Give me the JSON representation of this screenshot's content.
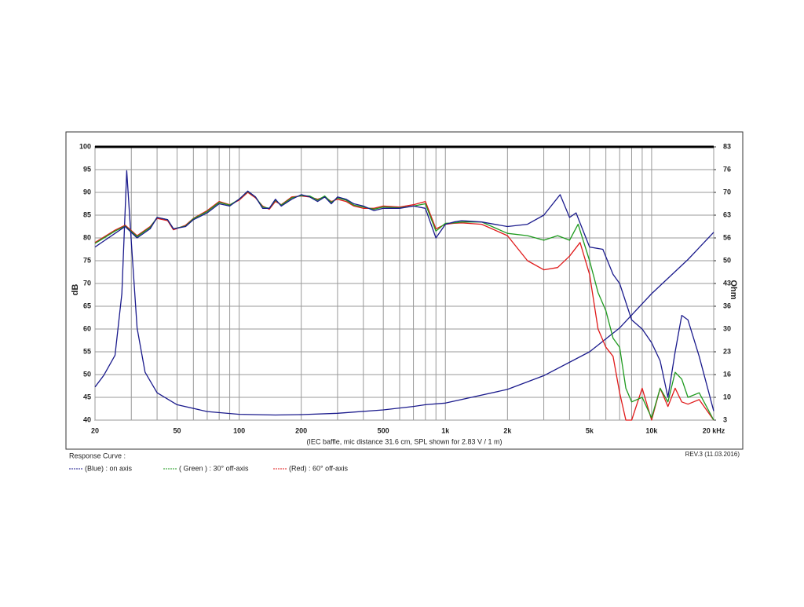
{
  "chart_data": {
    "type": "line",
    "xscale": "log",
    "xlim": [
      20,
      20000
    ],
    "xticks": [
      20,
      50,
      100,
      200,
      500,
      {
        "value": 1000,
        "label": "1k"
      },
      {
        "value": 2000,
        "label": "2k"
      },
      {
        "value": 5000,
        "label": "5k"
      },
      {
        "value": 10000,
        "label": "10k"
      },
      {
        "value": 20000,
        "label": "20 kHz"
      }
    ],
    "xgrid": [
      30,
      40,
      60,
      70,
      80,
      90,
      300,
      400,
      600,
      700,
      800,
      900,
      3000,
      4000,
      6000,
      7000,
      8000,
      9000
    ],
    "ylim": [
      40,
      100
    ],
    "yticks": [
      40,
      45,
      50,
      55,
      60,
      65,
      70,
      75,
      80,
      85,
      90,
      95,
      100
    ],
    "y2lim": [
      3,
      83
    ],
    "y2ticks": [
      3,
      {
        "value": 9.667,
        "label": "10"
      },
      {
        "value": 16.333,
        "label": "16"
      },
      23,
      {
        "value": 29.667,
        "label": "30"
      },
      {
        "value": 36.333,
        "label": "36"
      },
      43,
      {
        "value": 49.667,
        "label": "50"
      },
      {
        "value": 56.333,
        "label": "56"
      },
      63,
      {
        "value": 69.667,
        "label": "70"
      },
      {
        "value": 76.333,
        "label": "76"
      },
      83
    ],
    "ylabel": "dB",
    "y2label": "Ohm",
    "xlabel": "(IEC baffle, mic distance 31.6 cm, SPL shown for 2.83 V / 1 m)",
    "grid": true,
    "legend_title": "Response Curve :",
    "revision": "REV.3 (11.03.2016)",
    "series": [
      {
        "name": "(Blue)  : on axis",
        "color": "#1a1a8c",
        "x": [
          20,
          25,
          28,
          32,
          37,
          40,
          45,
          48,
          55,
          60,
          70,
          80,
          90,
          100,
          110,
          120,
          130,
          140,
          150,
          160,
          180,
          200,
          220,
          240,
          260,
          280,
          300,
          330,
          360,
          400,
          450,
          500,
          600,
          700,
          800,
          900,
          1000,
          1100,
          1200,
          1500,
          2000,
          2500,
          3000,
          3600,
          4000,
          4300,
          5000,
          5800,
          6500,
          7000,
          8000,
          9000,
          10000,
          11000,
          12000,
          13000,
          14000,
          15000,
          17000,
          20000
        ],
        "values": [
          78,
          81,
          82.5,
          80,
          82,
          84.5,
          84,
          82,
          82.5,
          84,
          85.5,
          87.5,
          87,
          88.5,
          90.3,
          89,
          86.5,
          86.5,
          88.5,
          87,
          88.5,
          89.5,
          89,
          88,
          89,
          87.5,
          89,
          88.5,
          87.5,
          87,
          86,
          86.5,
          86.5,
          87,
          86.5,
          80,
          83,
          83.5,
          83.8,
          83.5,
          82.5,
          83,
          85,
          89.5,
          84.5,
          85.5,
          78,
          77.5,
          72,
          70,
          62,
          60,
          57,
          53,
          45,
          55,
          63,
          62,
          54,
          42
        ]
      },
      {
        "name": "( Green ) : 30° off-axis",
        "color": "#1e9a1e",
        "x": [
          20,
          25,
          28,
          32,
          37,
          40,
          45,
          48,
          55,
          60,
          70,
          80,
          90,
          100,
          110,
          120,
          130,
          140,
          150,
          160,
          180,
          200,
          220,
          240,
          260,
          280,
          300,
          330,
          360,
          400,
          450,
          500,
          600,
          700,
          800,
          900,
          1000,
          1100,
          1200,
          1500,
          2000,
          2500,
          3000,
          3500,
          4000,
          4400,
          5000,
          5500,
          6000,
          6500,
          7000,
          7500,
          8000,
          9000,
          10000,
          11000,
          12000,
          13000,
          14000,
          15000,
          17000,
          20000
        ],
        "values": [
          78.8,
          81.5,
          82.6,
          80.3,
          82.3,
          84.5,
          84,
          82,
          82.6,
          84.2,
          85.8,
          87.8,
          87.2,
          88.5,
          90.2,
          89,
          86.8,
          86.5,
          88.3,
          87.2,
          88.8,
          89.3,
          89.2,
          88.3,
          89.2,
          87.8,
          88.8,
          88.3,
          87.2,
          86.8,
          86.3,
          86.8,
          86.6,
          87,
          87.5,
          81.5,
          83.2,
          83.3,
          83.5,
          83.5,
          81,
          80.5,
          79.5,
          80.5,
          79.5,
          83,
          75,
          68,
          64,
          58,
          56,
          47,
          44,
          45,
          40.5,
          47,
          44,
          50.5,
          49,
          45,
          46,
          40
        ]
      },
      {
        "name": "(Red) : 60° off-axis",
        "color": "#e01a1a",
        "x": [
          20,
          25,
          28,
          32,
          37,
          40,
          45,
          48,
          55,
          60,
          70,
          80,
          90,
          100,
          110,
          120,
          130,
          140,
          150,
          160,
          180,
          200,
          220,
          240,
          260,
          280,
          300,
          330,
          360,
          400,
          450,
          500,
          600,
          700,
          800,
          900,
          1000,
          1100,
          1200,
          1500,
          2000,
          2500,
          3000,
          3500,
          4000,
          4500,
          5000,
          5500,
          6000,
          6500,
          7000,
          7500,
          8000,
          9000,
          10000,
          11000,
          12000,
          13000,
          14000,
          15000,
          17000,
          20000
        ],
        "values": [
          79,
          81.7,
          82.8,
          80.5,
          82.5,
          84.3,
          83.8,
          81.8,
          82.8,
          84.3,
          86,
          88,
          87.3,
          88.3,
          90,
          88.8,
          87,
          86.3,
          88,
          87.3,
          89,
          89.2,
          89,
          88.5,
          89,
          88,
          88.5,
          88,
          87,
          86.5,
          86.5,
          87,
          86.8,
          87.3,
          88,
          82,
          83,
          83.2,
          83.3,
          83,
          80.5,
          75,
          73,
          73.5,
          76,
          79,
          72,
          60,
          56,
          54,
          46,
          40,
          40,
          47,
          40,
          47,
          43,
          47,
          44,
          43.5,
          44.5,
          40
        ]
      },
      {
        "color": "#1a1a8c",
        "axis": "y2",
        "x": [
          20,
          22,
          25,
          27,
          28.5,
          30,
          32,
          35,
          40,
          50,
          70,
          100,
          150,
          200,
          300,
          500,
          700,
          800,
          1000,
          2000,
          3000,
          5000,
          7000,
          10000,
          15000,
          20000
        ],
        "values": [
          12.7,
          16,
          22,
          40,
          76,
          55,
          30,
          17,
          11,
          7.5,
          5.5,
          4.7,
          4.5,
          4.6,
          5,
          6,
          7,
          7.5,
          8,
          12,
          16,
          23,
          30,
          40,
          50,
          58
        ]
      }
    ]
  }
}
